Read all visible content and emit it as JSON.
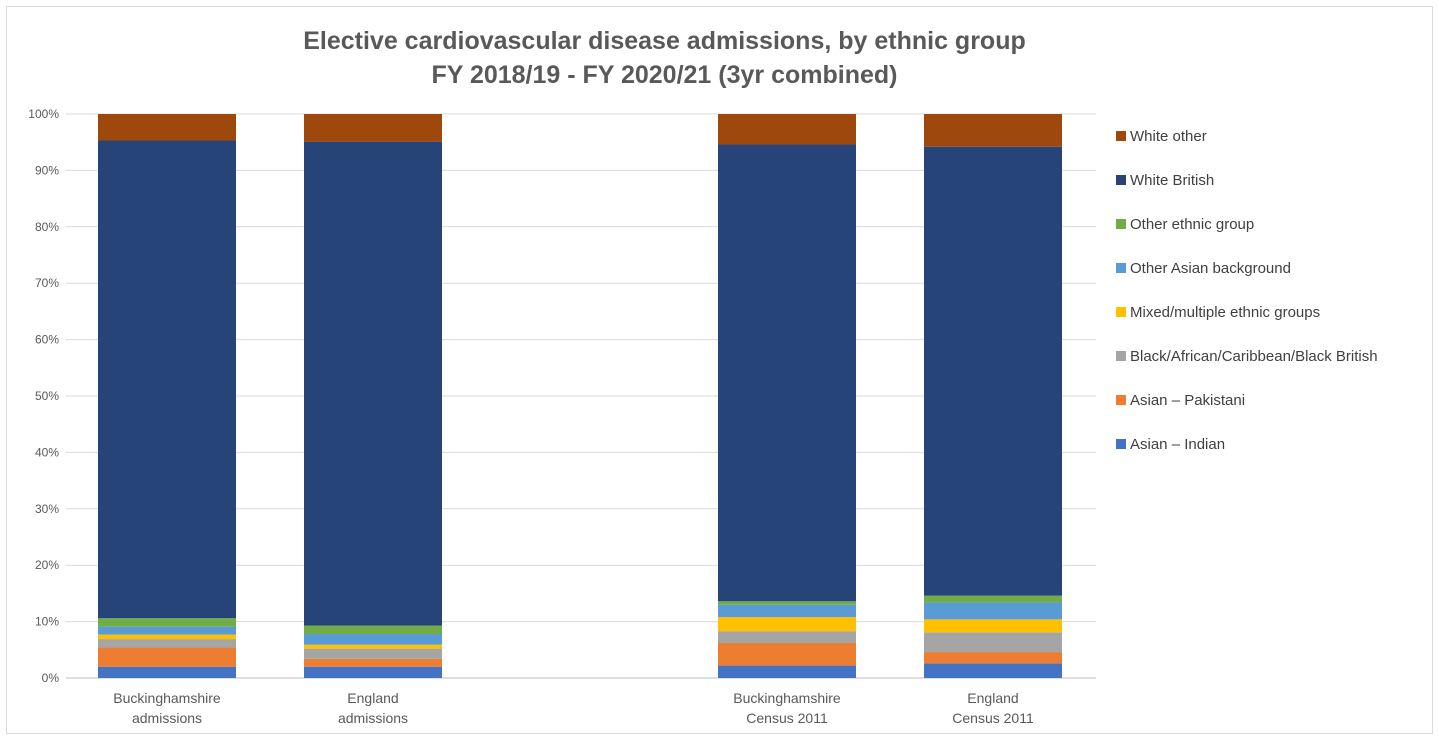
{
  "chart_data": {
    "type": "bar",
    "stacked": true,
    "percent_stacked": true,
    "title_lines": [
      "Elective cardiovascular disease admissions, by ethnic group",
      "FY 2018/19 - FY 2020/21 (3yr combined)"
    ],
    "xlabel": "",
    "ylabel": "",
    "ylim": [
      0,
      100
    ],
    "yticks": [
      "0%",
      "10%",
      "20%",
      "30%",
      "40%",
      "50%",
      "60%",
      "70%",
      "80%",
      "90%",
      "100%"
    ],
    "grid": true,
    "legend_position": "right",
    "categories": [
      [
        "Buckinghamshire",
        "admissions"
      ],
      [
        "England",
        "admissions"
      ],
      [
        "Buckinghamshire",
        "Census 2011"
      ],
      [
        "England",
        "Census 2011"
      ]
    ],
    "series": [
      {
        "name": "Asian – Indian",
        "color": "#4472c4",
        "values": [
          2.0,
          2.0,
          2.2,
          2.6
        ]
      },
      {
        "name": "Asian – Pakistani",
        "color": "#ed7d31",
        "values": [
          3.4,
          1.4,
          4.0,
          2.0
        ]
      },
      {
        "name": "Black/African/Caribbean/Black British",
        "color": "#a5a5a5",
        "values": [
          1.5,
          1.8,
          2.1,
          3.5
        ]
      },
      {
        "name": "Mixed/multiple ethnic groups",
        "color": "#ffc000",
        "values": [
          0.8,
          0.7,
          2.5,
          2.3
        ]
      },
      {
        "name": "Other Asian background",
        "color": "#5b9bd5",
        "values": [
          1.4,
          1.9,
          2.2,
          3.0
        ]
      },
      {
        "name": "Other ethnic group",
        "color": "#70ad47",
        "values": [
          1.5,
          1.5,
          0.6,
          1.2
        ]
      },
      {
        "name": "White British",
        "color": "#264478",
        "values": [
          84.7,
          85.8,
          81.0,
          79.6
        ]
      },
      {
        "name": "White other",
        "color": "#9e480e",
        "values": [
          4.7,
          4.9,
          5.4,
          5.8
        ]
      }
    ]
  }
}
